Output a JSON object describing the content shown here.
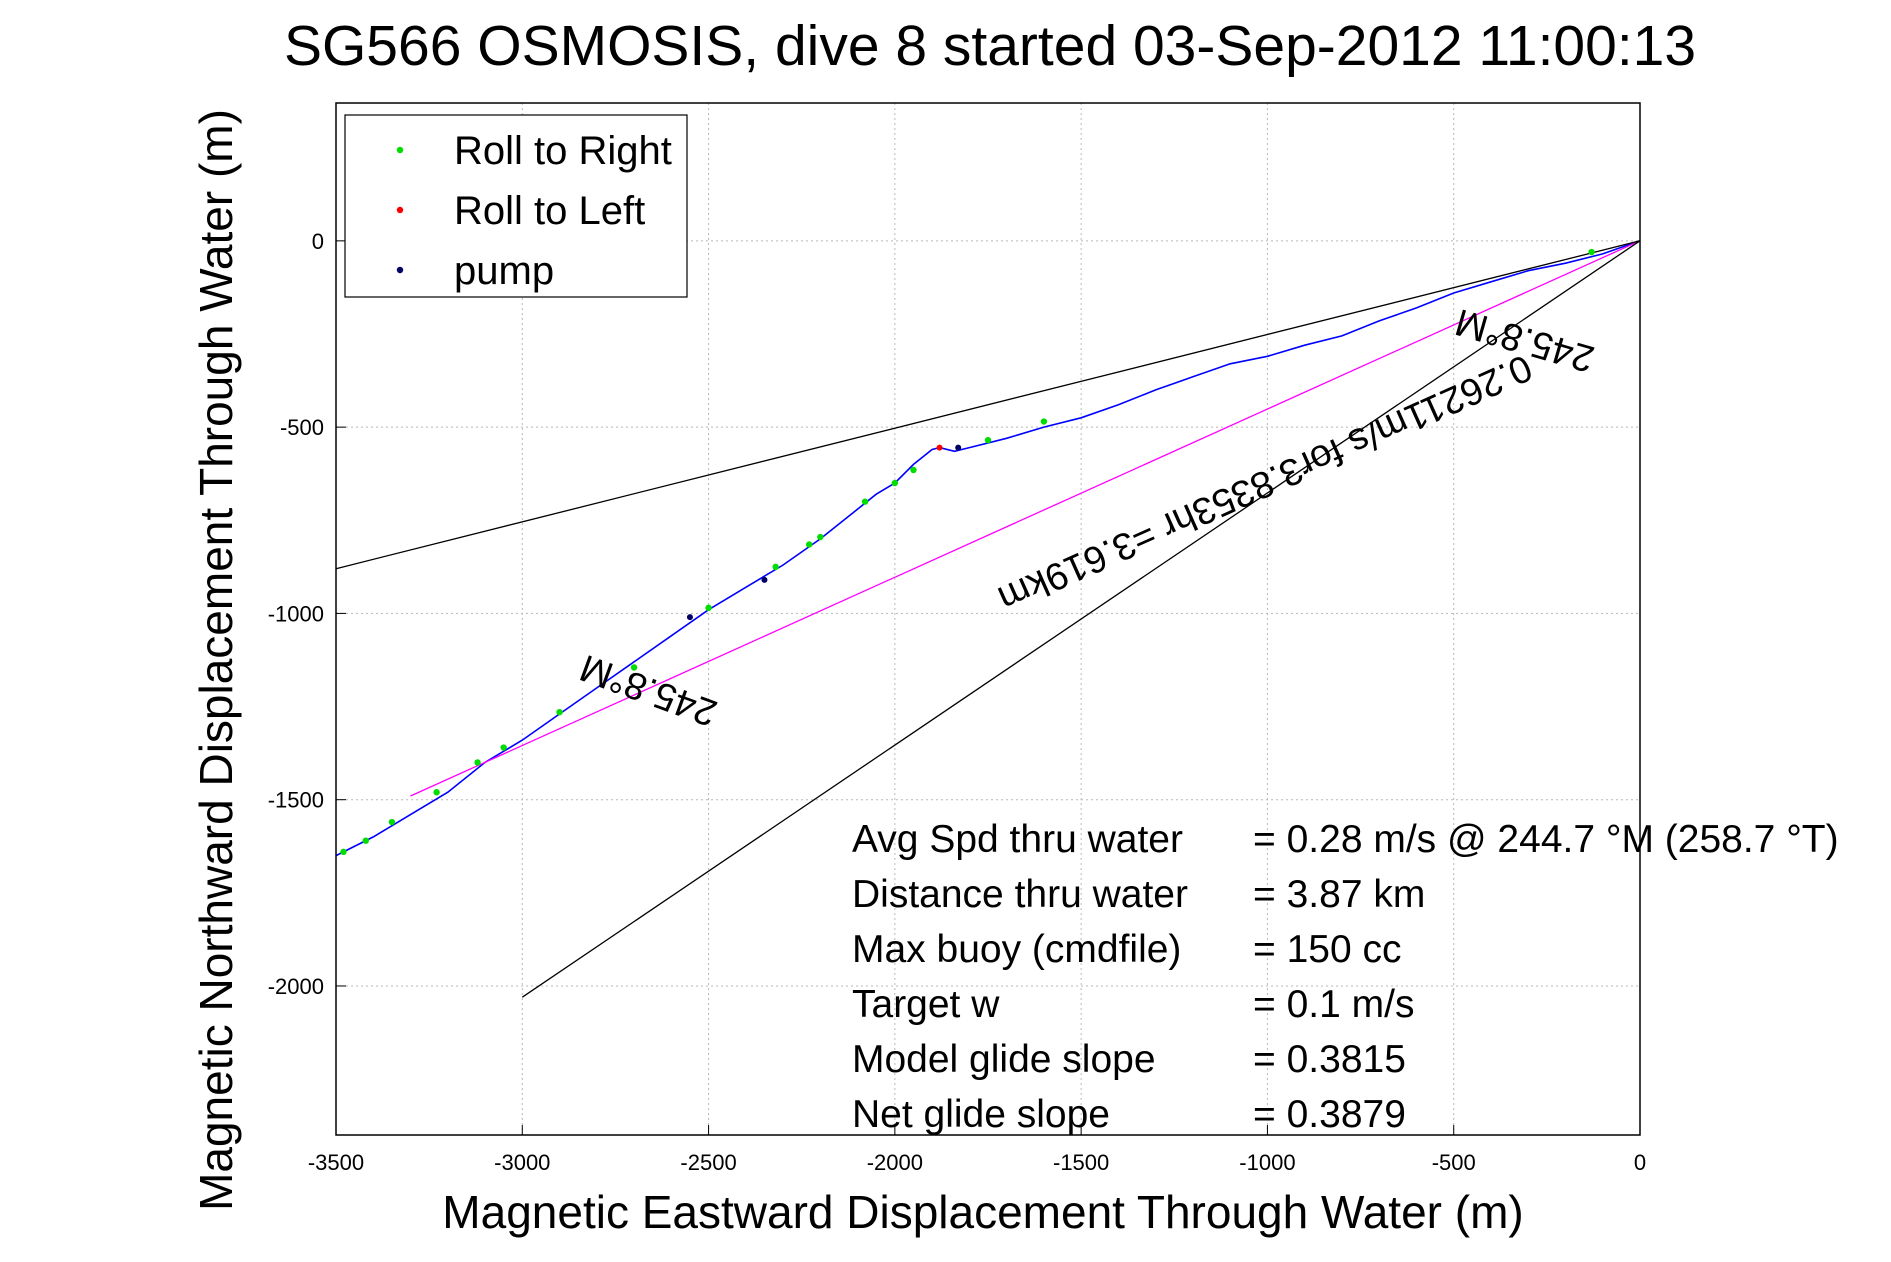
{
  "chart_data": {
    "type": "line",
    "title": "SG566 OSMOSIS, dive 8 started 03-Sep-2012 11:00:13",
    "xlabel": "Magnetic Eastward Displacement Through Water (m)",
    "ylabel": "Magnetic Northward Displacement Through Water (m)",
    "xlim": [
      -3500,
      0
    ],
    "ylim": [
      -2400,
      370
    ],
    "x_ticks": [
      "-3500",
      "-3000",
      "-2500",
      "-2000",
      "-1500",
      "-1000",
      "-500",
      "0"
    ],
    "y_ticks": [
      "0",
      "-500",
      "-1000",
      "-1500",
      "-2000"
    ],
    "grid": true,
    "legend_position": "top-left",
    "legend": [
      {
        "label": "Roll to Right",
        "color": "#00dd00"
      },
      {
        "label": "Roll to Left",
        "color": "#ff0000"
      },
      {
        "label": "pump",
        "color": "#000066"
      }
    ],
    "series": [
      {
        "name": "track",
        "color": "#0000ff",
        "x": [
          0,
          -100,
          -200,
          -300,
          -400,
          -500,
          -600,
          -700,
          -800,
          -900,
          -1000,
          -1100,
          -1200,
          -1300,
          -1400,
          -1500,
          -1600,
          -1700,
          -1800,
          -1840,
          -1880,
          -1900,
          -1950,
          -2000,
          -2050,
          -2100,
          -2200,
          -2300,
          -2400,
          -2500,
          -2600,
          -2700,
          -2800,
          -2900,
          -3000,
          -3100,
          -3200,
          -3300,
          -3400,
          -3500
        ],
        "y": [
          0,
          -35,
          -60,
          -80,
          -110,
          -140,
          -180,
          -215,
          -255,
          -280,
          -310,
          -330,
          -365,
          -400,
          -440,
          -475,
          -500,
          -530,
          -555,
          -565,
          -555,
          -560,
          -600,
          -650,
          -680,
          -720,
          -800,
          -870,
          -930,
          -990,
          -1060,
          -1130,
          -1200,
          -1270,
          -1340,
          -1400,
          -1480,
          -1540,
          -1600,
          -1650
        ]
      },
      {
        "name": "drift",
        "color": "#ff00ff",
        "x": [
          0,
          -3300
        ],
        "y": [
          0,
          -1490
        ]
      },
      {
        "name": "bound_upper",
        "color": "#000000",
        "x": [
          0,
          -3500
        ],
        "y": [
          0,
          -880
        ]
      },
      {
        "name": "bound_lower",
        "color": "#000000",
        "x": [
          0,
          -3000
        ],
        "y": [
          0,
          -2030
        ]
      }
    ],
    "marker_points": {
      "roll_right": {
        "color": "#00dd00",
        "x": [
          -130,
          -1600,
          -1750,
          -1950,
          -2000,
          -2080,
          -2200,
          -2230,
          -2320,
          -2500,
          -2700,
          -2900,
          -3050,
          -3120,
          -3230,
          -3350,
          -3420,
          -3480
        ],
        "y": [
          -30,
          -485,
          -535,
          -615,
          -650,
          -700,
          -795,
          -815,
          -875,
          -985,
          -1145,
          -1265,
          -1360,
          -1400,
          -1480,
          -1560,
          -1610,
          -1640
        ]
      },
      "roll_left": {
        "color": "#ff0000",
        "x": [
          -1880
        ],
        "y": [
          -555
        ]
      },
      "pump": {
        "color": "#000066",
        "x": [
          -1830,
          -2350,
          -2550
        ],
        "y": [
          -555,
          -910,
          -1010
        ]
      }
    },
    "annotations": [
      {
        "text": "245.8°M",
        "x": -300,
        "y": -235,
        "rotation_deg": 196
      },
      {
        "text": "0.26211m/s for3.8353hr =3.619km",
        "x": -1020,
        "y": -620,
        "rotation_deg": 156
      },
      {
        "text": "245.8°M",
        "x": -2650,
        "y": -1175,
        "rotation_deg": 200
      }
    ],
    "stats": [
      {
        "label": "Avg Spd thru water",
        "value": "=  0.28 m/s @ 244.7 °M (258.7 °T)"
      },
      {
        "label": "Distance thru water",
        "value": "=  3.87 km"
      },
      {
        "label": "Max buoy (cmdfile)",
        "value": "= 150 cc"
      },
      {
        "label": "Target w",
        "value": "= 0.1 m/s"
      },
      {
        "label": "Model glide slope",
        "value": "= 0.3815"
      },
      {
        "label": "Net glide slope",
        "value": "= 0.3879"
      }
    ]
  }
}
